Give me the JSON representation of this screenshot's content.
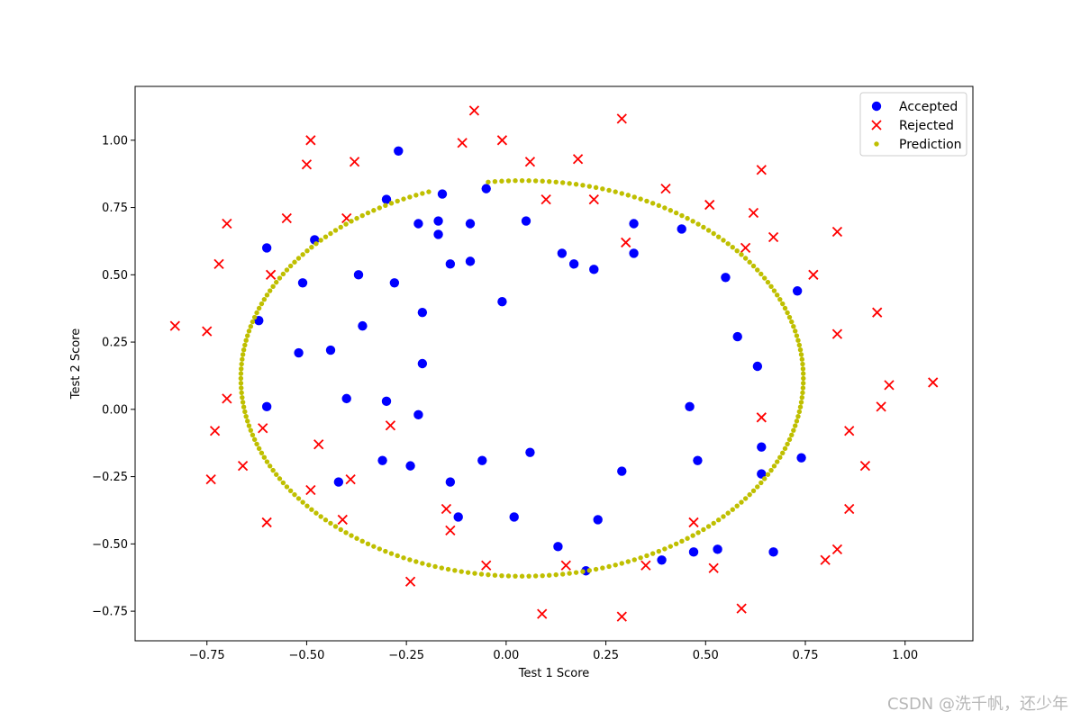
{
  "chart_data": {
    "type": "scatter",
    "title": "",
    "xlabel": "Test 1 Score",
    "ylabel": "Test 2 Score",
    "xlim": [
      -0.93,
      1.17
    ],
    "ylim": [
      -0.86,
      1.2
    ],
    "xticks": [
      -0.75,
      -0.5,
      -0.25,
      0.0,
      0.25,
      0.5,
      0.75,
      1.0
    ],
    "xtick_labels": [
      "−0.75",
      "−0.50",
      "−0.25",
      "0.00",
      "0.25",
      "0.50",
      "0.75",
      "1.00"
    ],
    "yticks": [
      -0.75,
      -0.5,
      -0.25,
      0.0,
      0.25,
      0.5,
      0.75,
      1.0
    ],
    "ytick_labels": [
      "−0.75",
      "−0.50",
      "−0.25",
      "0.00",
      "0.25",
      "0.50",
      "0.75",
      "1.00"
    ],
    "grid": false,
    "legend_position": "top-right",
    "series": [
      {
        "name": "Accepted",
        "marker": "circle",
        "color": "#0000ff",
        "points": [
          [
            -0.27,
            0.96
          ],
          [
            -0.6,
            0.6
          ],
          [
            -0.62,
            0.33
          ],
          [
            -0.6,
            0.01
          ],
          [
            -0.51,
            0.47
          ],
          [
            -0.48,
            0.63
          ],
          [
            -0.52,
            0.21
          ],
          [
            -0.44,
            0.22
          ],
          [
            -0.37,
            0.5
          ],
          [
            -0.36,
            0.31
          ],
          [
            -0.4,
            0.04
          ],
          [
            -0.42,
            -0.27
          ],
          [
            -0.3,
            0.78
          ],
          [
            -0.28,
            0.47
          ],
          [
            -0.3,
            0.03
          ],
          [
            -0.31,
            -0.19
          ],
          [
            -0.22,
            0.69
          ],
          [
            -0.21,
            0.36
          ],
          [
            -0.21,
            0.17
          ],
          [
            -0.22,
            -0.02
          ],
          [
            -0.24,
            -0.21
          ],
          [
            -0.17,
            0.7
          ],
          [
            -0.17,
            0.65
          ],
          [
            -0.16,
            0.8
          ],
          [
            -0.14,
            0.54
          ],
          [
            -0.09,
            0.69
          ],
          [
            -0.09,
            0.55
          ],
          [
            -0.05,
            0.82
          ],
          [
            -0.14,
            -0.27
          ],
          [
            -0.12,
            -0.4
          ],
          [
            -0.06,
            -0.19
          ],
          [
            -0.01,
            0.4
          ],
          [
            0.02,
            -0.4
          ],
          [
            0.05,
            0.7
          ],
          [
            0.06,
            -0.16
          ],
          [
            0.14,
            0.58
          ],
          [
            0.17,
            0.54
          ],
          [
            0.22,
            0.52
          ],
          [
            0.13,
            -0.51
          ],
          [
            0.2,
            -0.6
          ],
          [
            0.23,
            -0.41
          ],
          [
            0.29,
            -0.23
          ],
          [
            0.32,
            0.69
          ],
          [
            0.32,
            0.58
          ],
          [
            0.44,
            0.67
          ],
          [
            0.46,
            0.01
          ],
          [
            0.48,
            -0.19
          ],
          [
            0.39,
            -0.56
          ],
          [
            0.47,
            -0.53
          ],
          [
            0.53,
            -0.52
          ],
          [
            0.55,
            0.49
          ],
          [
            0.58,
            0.27
          ],
          [
            0.63,
            0.16
          ],
          [
            0.64,
            -0.14
          ],
          [
            0.64,
            -0.24
          ],
          [
            0.67,
            -0.53
          ],
          [
            0.73,
            0.44
          ],
          [
            0.74,
            -0.18
          ]
        ]
      },
      {
        "name": "Rejected",
        "marker": "x",
        "color": "#ff0000",
        "points": [
          [
            -0.83,
            0.31
          ],
          [
            -0.75,
            0.29
          ],
          [
            -0.72,
            0.54
          ],
          [
            -0.7,
            0.69
          ],
          [
            -0.7,
            0.04
          ],
          [
            -0.73,
            -0.08
          ],
          [
            -0.74,
            -0.26
          ],
          [
            -0.66,
            -0.21
          ],
          [
            -0.61,
            -0.07
          ],
          [
            -0.59,
            0.5
          ],
          [
            -0.6,
            -0.42
          ],
          [
            -0.55,
            0.71
          ],
          [
            -0.5,
            0.91
          ],
          [
            -0.49,
            1.0
          ],
          [
            -0.49,
            -0.3
          ],
          [
            -0.47,
            -0.13
          ],
          [
            -0.41,
            -0.41
          ],
          [
            -0.4,
            0.71
          ],
          [
            -0.38,
            0.92
          ],
          [
            -0.39,
            -0.26
          ],
          [
            -0.29,
            -0.06
          ],
          [
            -0.24,
            -0.64
          ],
          [
            -0.15,
            -0.37
          ],
          [
            -0.14,
            -0.45
          ],
          [
            -0.11,
            0.99
          ],
          [
            -0.08,
            1.11
          ],
          [
            -0.05,
            -0.58
          ],
          [
            -0.01,
            1.0
          ],
          [
            0.06,
            0.92
          ],
          [
            0.09,
            -0.76
          ],
          [
            0.1,
            0.78
          ],
          [
            0.15,
            -0.58
          ],
          [
            0.18,
            0.93
          ],
          [
            0.22,
            0.78
          ],
          [
            0.29,
            1.08
          ],
          [
            0.3,
            0.62
          ],
          [
            0.29,
            -0.77
          ],
          [
            0.35,
            -0.58
          ],
          [
            0.4,
            0.82
          ],
          [
            0.47,
            -0.42
          ],
          [
            0.51,
            0.76
          ],
          [
            0.52,
            -0.59
          ],
          [
            0.59,
            -0.74
          ],
          [
            0.6,
            0.6
          ],
          [
            0.62,
            0.73
          ],
          [
            0.64,
            0.89
          ],
          [
            0.64,
            -0.03
          ],
          [
            0.67,
            0.64
          ],
          [
            0.77,
            0.5
          ],
          [
            0.8,
            -0.56
          ],
          [
            0.83,
            0.66
          ],
          [
            0.83,
            0.28
          ],
          [
            0.83,
            -0.52
          ],
          [
            0.86,
            -0.37
          ],
          [
            0.86,
            -0.08
          ],
          [
            0.9,
            -0.21
          ],
          [
            0.93,
            0.36
          ],
          [
            0.94,
            0.01
          ],
          [
            0.96,
            0.09
          ],
          [
            1.07,
            0.1
          ]
        ]
      },
      {
        "name": "Prediction",
        "marker": "dot",
        "color": "#bfbf00",
        "boundary_ellipse": {
          "center": [
            0.04,
            0.115
          ],
          "semi_axis_x": 0.705,
          "semi_axis_y": 0.735,
          "gap_x_range": [
            -0.19,
            -0.06
          ]
        }
      }
    ]
  }
}
